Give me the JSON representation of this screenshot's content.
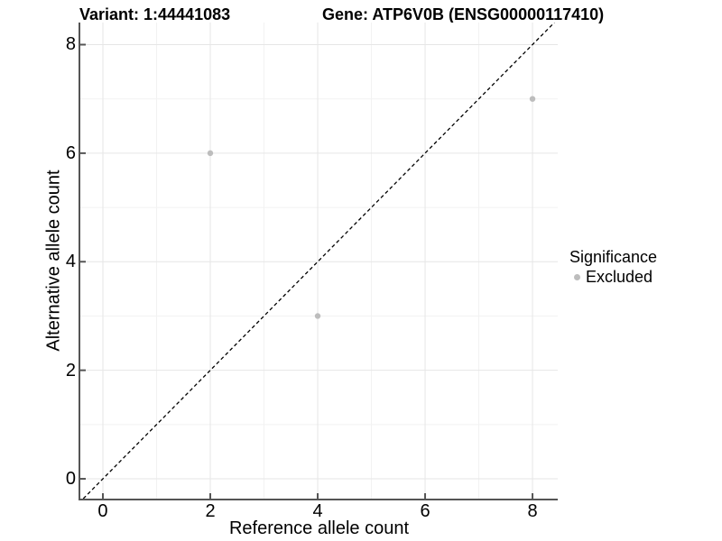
{
  "header": {
    "variant_title": "Variant: 1:44441083",
    "gene_title": "Gene: ATP6V0B (ENSG00000117410)"
  },
  "chart_data": {
    "type": "scatter",
    "title": "Variant: 1:44441083 / Gene: ATP6V0B (ENSG00000117410)",
    "xlabel": "Reference allele count",
    "ylabel": "Alternative allele count",
    "xlim": [
      -0.42,
      8.47
    ],
    "ylim": [
      -0.365,
      8.407
    ],
    "x_ticks": [
      0,
      2,
      4,
      6,
      8
    ],
    "y_ticks": [
      0,
      2,
      4,
      6,
      8
    ],
    "x_minor": [
      1,
      3,
      5,
      7
    ],
    "y_minor": [
      1,
      3,
      5,
      7
    ],
    "grid": true,
    "series": [
      {
        "name": "Excluded",
        "color": "#bdbdbd",
        "point_radius": 3.2,
        "points": [
          [
            2,
            6
          ],
          [
            4,
            3
          ],
          [
            8,
            7
          ]
        ]
      }
    ],
    "reference_line": {
      "description": "identity line y = x",
      "style": "dashed",
      "color": "#000000",
      "from": [
        -0.365,
        -0.365
      ],
      "to": [
        8.407,
        8.407
      ]
    },
    "legend": {
      "position": "right",
      "title": "Significance",
      "entries": [
        {
          "label": "Excluded",
          "color": "#bdbdbd"
        }
      ]
    }
  },
  "colors": {
    "axis_line": "#555555",
    "tick_mark": "#555555",
    "grid_major": "#e6e6e6",
    "grid_minor": "#f2f2f2",
    "point": "#bdbdbd",
    "background": "#ffffff"
  }
}
